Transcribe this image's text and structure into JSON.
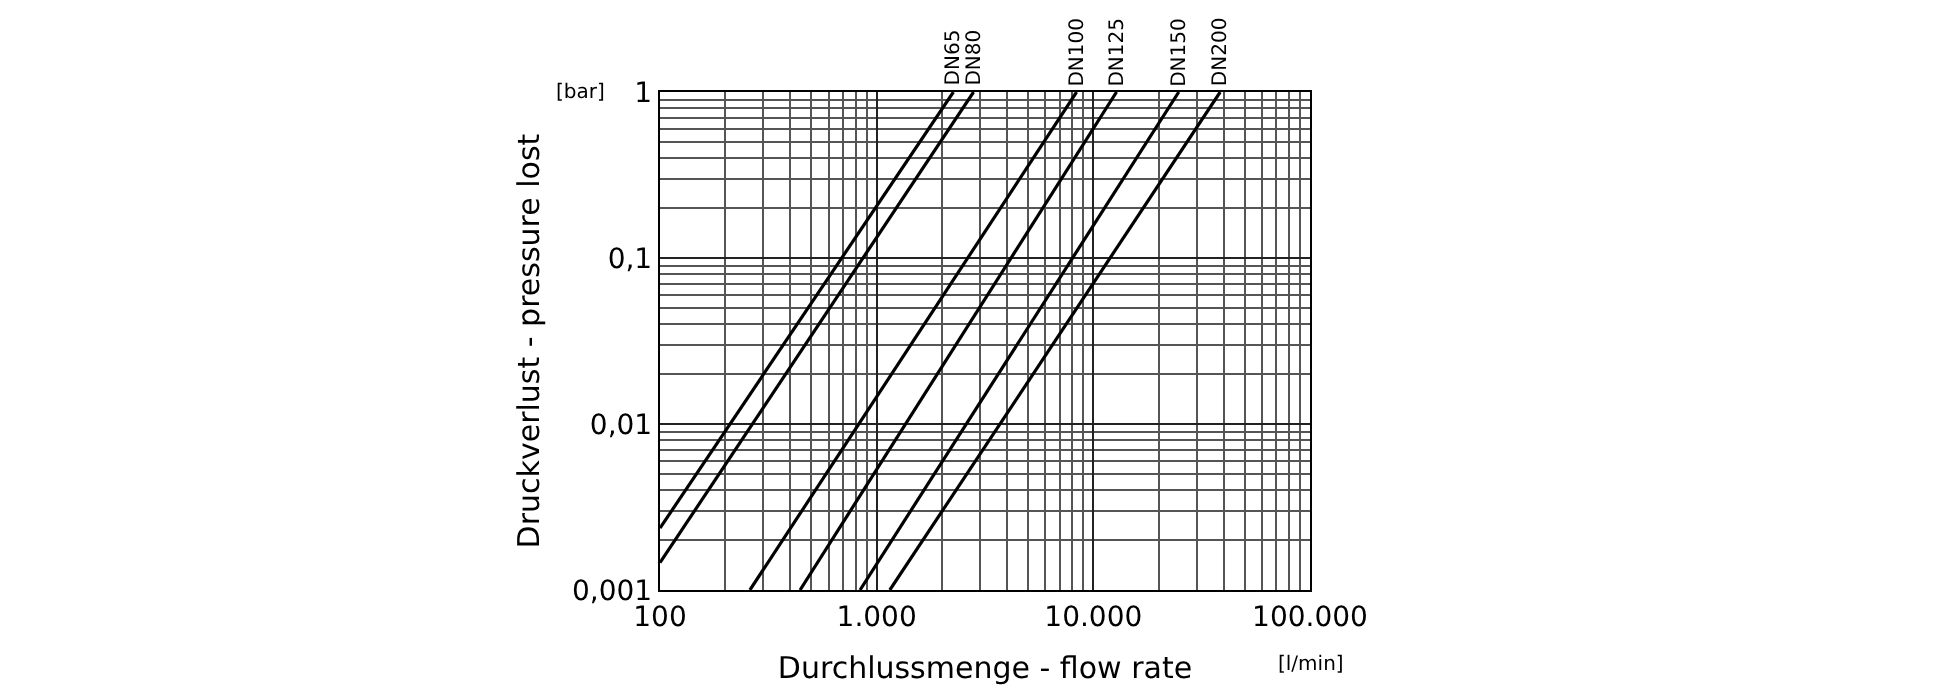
{
  "chart_data": {
    "type": "line",
    "xlabel": "Durchlussmenge - flow rate",
    "ylabel": "Druckverlust - pressure lost",
    "annotations": [
      "[bar]",
      "[l/min]"
    ],
    "log": "xy",
    "grid": true,
    "legend": false,
    "marker": "none",
    "line_style": "solid",
    "xlim": [
      100,
      100000
    ],
    "ylim": [
      0.001,
      1
    ],
    "xticks": [
      100,
      {
        "value": 1000,
        "label": "1.000"
      },
      {
        "value": 10000,
        "label": "10.000"
      },
      {
        "value": 100000,
        "label": "100.000"
      }
    ],
    "yticks": [
      {
        "value": 0.001,
        "label": "0,001"
      },
      {
        "value": 0.01,
        "label": "0,01"
      },
      {
        "value": 0.1,
        "label": "0,1"
      },
      1
    ],
    "series": [
      {
        "name": "DN65",
        "color": "#000000",
        "x": [
          100,
          2260
        ],
        "values": [
          0.00236,
          1
        ]
      },
      {
        "name": "DN80",
        "color": "#000000",
        "x": [
          100,
          2800
        ],
        "values": [
          0.00146,
          1
        ]
      },
      {
        "name": "DN100",
        "color": "#000000",
        "x": [
          260,
          8370
        ],
        "values": [
          0.001,
          1
        ]
      },
      {
        "name": "DN125",
        "color": "#000000",
        "x": [
          443,
          12800
        ],
        "values": [
          0.001,
          1
        ]
      },
      {
        "name": "DN150",
        "color": "#000000",
        "x": [
          838,
          24800
        ],
        "values": [
          0.001,
          1
        ]
      },
      {
        "name": "DN200",
        "color": "#000000",
        "x": [
          1150,
          38500
        ],
        "values": [
          0.001,
          1
        ]
      }
    ]
  }
}
